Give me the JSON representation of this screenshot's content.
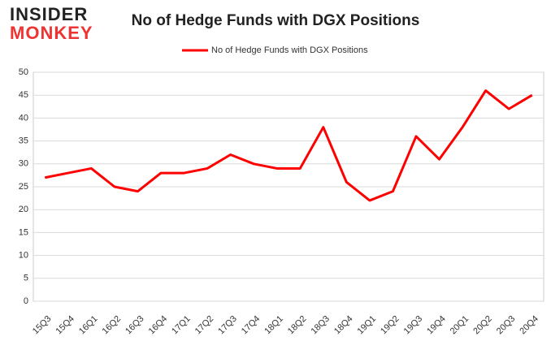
{
  "logo": {
    "line1": "INSIDER",
    "line2": "MONKEY"
  },
  "chart_data": {
    "type": "line",
    "title": "No of Hedge Funds with DGX Positions",
    "categories": [
      "15Q3",
      "15Q4",
      "16Q1",
      "16Q2",
      "16Q3",
      "16Q4",
      "17Q1",
      "17Q2",
      "17Q3",
      "17Q4",
      "18Q1",
      "18Q2",
      "18Q3",
      "18Q4",
      "19Q1",
      "19Q2",
      "19Q3",
      "19Q4",
      "20Q1",
      "20Q2",
      "20Q3",
      "20Q4"
    ],
    "series": [
      {
        "name": "No of Hedge Funds with DGX Positions",
        "color": "#ff0000",
        "values": [
          27,
          28,
          29,
          25,
          24,
          28,
          28,
          29,
          32,
          30,
          29,
          29,
          38,
          26,
          22,
          24,
          36,
          31,
          38,
          46,
          42,
          45
        ]
      }
    ],
    "ylim": [
      0,
      50
    ],
    "yticks": [
      0,
      5,
      10,
      15,
      20,
      25,
      30,
      35,
      40,
      45,
      50
    ],
    "grid": true,
    "legend": "top"
  }
}
